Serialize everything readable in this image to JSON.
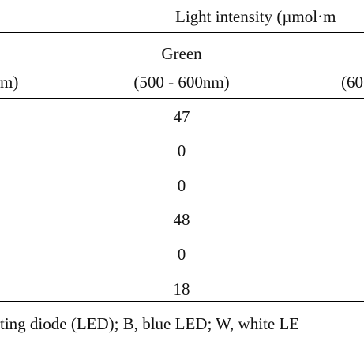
{
  "table": {
    "spanning_header": "Light intensity (µmol·m",
    "columns": {
      "left_partial_unit": "m)",
      "green_label": "Green",
      "green_range": "(500 - 600nm)",
      "right_partial": "(60"
    },
    "green_values": [
      "47",
      "0",
      "0",
      "48",
      "0",
      "18"
    ],
    "footnote": "ting diode (LED); B, blue LED; W, white LE"
  }
}
